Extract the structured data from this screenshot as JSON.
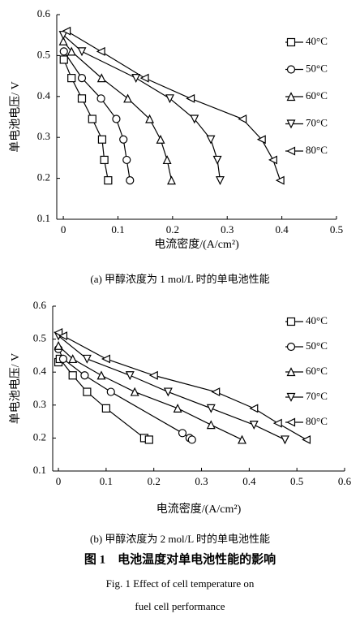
{
  "chart_data": [
    {
      "type": "line",
      "x_label": "电流密度/(A/cm²)",
      "y_label": "单电池电压/ V",
      "caption": "(a) 甲醇浓度为 1 mol/L 时的单电池性能",
      "xlim": [
        -0.012,
        0.5
      ],
      "xticks": [
        0,
        0.1,
        0.2,
        0.3,
        0.4,
        0.5
      ],
      "ylim": [
        0.1,
        0.6
      ],
      "yticks": [
        0.1,
        0.2,
        0.3,
        0.4,
        0.5,
        0.6
      ],
      "grid": false,
      "legend": "upper-right",
      "series": [
        {
          "name": "40°C",
          "color": "#000000",
          "marker": "square",
          "x": [
            0.001,
            0.015,
            0.034,
            0.053,
            0.071,
            0.075,
            0.082
          ],
          "values": [
            0.49,
            0.445,
            0.395,
            0.345,
            0.295,
            0.245,
            0.195
          ]
        },
        {
          "name": "50°C",
          "color": "#000000",
          "marker": "circle",
          "x": [
            0.001,
            0.034,
            0.069,
            0.097,
            0.11,
            0.116,
            0.122
          ],
          "values": [
            0.51,
            0.445,
            0.395,
            0.345,
            0.295,
            0.245,
            0.195
          ]
        },
        {
          "name": "60°C",
          "color": "#000000",
          "marker": "triangle-up",
          "x": [
            0,
            0.015,
            0.07,
            0.118,
            0.158,
            0.178,
            0.19,
            0.198
          ],
          "values": [
            0.535,
            0.51,
            0.445,
            0.395,
            0.345,
            0.295,
            0.245,
            0.195
          ]
        },
        {
          "name": "70°C",
          "color": "#000000",
          "marker": "triangle-down",
          "x": [
            0,
            0.034,
            0.133,
            0.195,
            0.24,
            0.27,
            0.282,
            0.287
          ],
          "values": [
            0.55,
            0.51,
            0.445,
            0.395,
            0.345,
            0.295,
            0.245,
            0.195
          ]
        },
        {
          "name": "80°C",
          "color": "#000000",
          "marker": "triangle-left",
          "x": [
            0.006,
            0.069,
            0.149,
            0.233,
            0.328,
            0.363,
            0.384,
            0.397
          ],
          "values": [
            0.56,
            0.51,
            0.445,
            0.395,
            0.345,
            0.295,
            0.245,
            0.195
          ]
        }
      ]
    },
    {
      "type": "line",
      "x_label": "电流密度/(A/cm²)",
      "y_label": "单电池电压/ V",
      "caption": "(b) 甲醇浓度为 2 mol/L 时的单电池性能",
      "xlim": [
        -0.012,
        0.6
      ],
      "xticks": [
        0,
        0.1,
        0.2,
        0.3,
        0.4,
        0.5,
        0.6
      ],
      "ylim": [
        0.1,
        0.6
      ],
      "yticks": [
        0.1,
        0.2,
        0.3,
        0.4,
        0.5,
        0.6
      ],
      "grid": false,
      "legend": "upper-right",
      "series": [
        {
          "name": "40°C",
          "color": "#000000",
          "marker": "square",
          "x": [
            0,
            0.003,
            0.03,
            0.06,
            0.1,
            0.18,
            0.19
          ],
          "values": [
            0.43,
            0.44,
            0.39,
            0.34,
            0.29,
            0.2,
            0.195
          ]
        },
        {
          "name": "50°C",
          "color": "#000000",
          "marker": "circle",
          "x": [
            0,
            0.01,
            0.055,
            0.11,
            0.26,
            0.275,
            0.28
          ],
          "values": [
            0.47,
            0.44,
            0.39,
            0.34,
            0.215,
            0.2,
            0.195
          ]
        },
        {
          "name": "60°C",
          "color": "#000000",
          "marker": "triangle-up",
          "x": [
            0,
            0.03,
            0.09,
            0.16,
            0.25,
            0.32,
            0.385
          ],
          "values": [
            0.48,
            0.44,
            0.39,
            0.34,
            0.29,
            0.24,
            0.195
          ]
        },
        {
          "name": "70°C",
          "color": "#000000",
          "marker": "triangle-down",
          "x": [
            0,
            0.06,
            0.15,
            0.23,
            0.32,
            0.41,
            0.475
          ],
          "values": [
            0.51,
            0.44,
            0.39,
            0.34,
            0.29,
            0.24,
            0.195
          ]
        },
        {
          "name": "80°C",
          "color": "#000000",
          "marker": "triangle-left",
          "x": [
            0,
            0.01,
            0.1,
            0.2,
            0.33,
            0.41,
            0.46,
            0.52
          ],
          "values": [
            0.52,
            0.51,
            0.44,
            0.39,
            0.34,
            0.29,
            0.245,
            0.195
          ]
        }
      ]
    }
  ],
  "figure_caption": {
    "zh": "图 1　电池温度对单电池性能的影响",
    "en": [
      "Fig. 1   Effect of cell temperature on",
      "fuel cell performance"
    ]
  }
}
